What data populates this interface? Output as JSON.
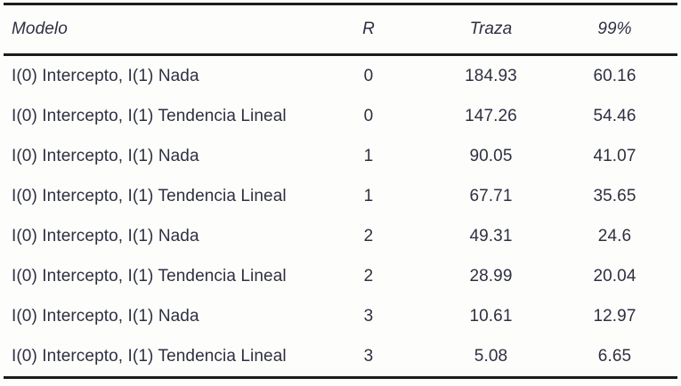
{
  "colors": {
    "text": "#2e3040",
    "rule": "#1c1c1c",
    "background": "#fdfdfc"
  },
  "table": {
    "columns": [
      "Modelo",
      "R",
      "Traza",
      "99%"
    ],
    "rows": [
      [
        "I(0) Intercepto, I(1) Nada",
        "0",
        "184.93",
        "60.16"
      ],
      [
        "I(0) Intercepto, I(1) Tendencia Lineal",
        "0",
        "147.26",
        "54.46"
      ],
      [
        "I(0) Intercepto, I(1) Nada",
        "1",
        "90.05",
        "41.07"
      ],
      [
        "I(0) Intercepto, I(1) Tendencia Lineal",
        "1",
        "67.71",
        "35.65"
      ],
      [
        "I(0) Intercepto, I(1) Nada",
        "2",
        "49.31",
        "24.6"
      ],
      [
        "I(0) Intercepto, I(1) Tendencia Lineal",
        "2",
        "28.99",
        "20.04"
      ],
      [
        "I(0) Intercepto, I(1) Nada",
        "3",
        "10.61",
        "12.97"
      ],
      [
        "I(0) Intercepto, I(1) Tendencia Lineal",
        "3",
        "5.08",
        "6.65"
      ]
    ]
  },
  "chart_data": {
    "type": "table",
    "columns": [
      "Modelo",
      "R",
      "Traza",
      "99%"
    ],
    "rows": [
      {
        "modelo": "I(0) Intercepto, I(1) Nada",
        "r": 0,
        "traza": 184.93,
        "crit_99": 60.16
      },
      {
        "modelo": "I(0) Intercepto, I(1) Tendencia Lineal",
        "r": 0,
        "traza": 147.26,
        "crit_99": 54.46
      },
      {
        "modelo": "I(0) Intercepto, I(1) Nada",
        "r": 1,
        "traza": 90.05,
        "crit_99": 41.07
      },
      {
        "modelo": "I(0) Intercepto, I(1) Tendencia Lineal",
        "r": 1,
        "traza": 67.71,
        "crit_99": 35.65
      },
      {
        "modelo": "I(0) Intercepto, I(1) Nada",
        "r": 2,
        "traza": 49.31,
        "crit_99": 24.6
      },
      {
        "modelo": "I(0) Intercepto, I(1) Tendencia Lineal",
        "r": 2,
        "traza": 28.99,
        "crit_99": 20.04
      },
      {
        "modelo": "I(0) Intercepto, I(1) Nada",
        "r": 3,
        "traza": 10.61,
        "crit_99": 12.97
      },
      {
        "modelo": "I(0) Intercepto, I(1) Tendencia Lineal",
        "r": 3,
        "traza": 5.08,
        "crit_99": 6.65
      }
    ]
  }
}
